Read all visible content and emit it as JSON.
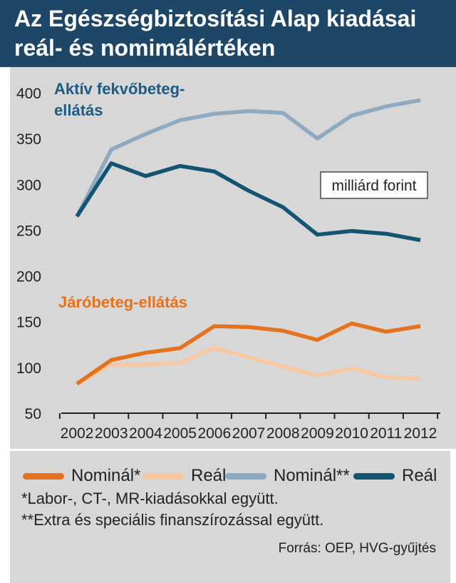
{
  "header": {
    "title_line1": "Az Egészségbiztosítási Alap kiadásai",
    "title_line2": "reál- és nomimálértéken"
  },
  "colors": {
    "header_bg": "#1e4666",
    "nominal_orange": "#e5721c",
    "real_orange": "#f8c9a1",
    "nominal_blue": "#8eaac0",
    "real_blue": "#135472",
    "background": "#d7d7d7"
  },
  "chart_data": {
    "type": "line",
    "categories": [
      "2002",
      "2003",
      "2004",
      "2005",
      "2006",
      "2007",
      "2008",
      "2009",
      "2010",
      "2011",
      "2012"
    ],
    "ylim": [
      50,
      400
    ],
    "yticks": [
      50,
      100,
      150,
      200,
      250,
      300,
      350,
      400
    ],
    "unit_label": "milliárd forint",
    "grid": false,
    "groups": [
      {
        "label": "Aktív fekvőbeteg-\nellátás",
        "label_line1": "Aktív fekvőbeteg-",
        "label_line2": "ellátás",
        "color": "#1d5c80"
      },
      {
        "label": "Járóbeteg-ellátás",
        "color": "#e5721c"
      }
    ],
    "series": [
      {
        "name": "Nominál**",
        "group": "Aktív fekvőbeteg-ellátás",
        "color": "#8eaac0",
        "values": [
          265,
          338,
          355,
          370,
          377,
          380,
          378,
          350,
          375,
          385,
          392
        ]
      },
      {
        "name": "Reál",
        "group": "Aktív fekvőbeteg-ellátás",
        "color": "#135472",
        "values": [
          265,
          323,
          309,
          320,
          314,
          293,
          275,
          245,
          249,
          246,
          239
        ]
      },
      {
        "name": "Reál",
        "group": "Járóbeteg-ellátás",
        "color": "#f8c9a1",
        "values": [
          82,
          103,
          103,
          105,
          121,
          111,
          101,
          91,
          99,
          89,
          88
        ]
      },
      {
        "name": "Nominál*",
        "group": "Járóbeteg-ellátás",
        "color": "#e5721c",
        "values": [
          82,
          108,
          116,
          121,
          145,
          144,
          140,
          130,
          148,
          139,
          145
        ]
      }
    ]
  },
  "legend": [
    {
      "label": "Nominál*",
      "color": "#e5721c"
    },
    {
      "label": "Reál",
      "color": "#f8c9a1"
    },
    {
      "label": "Nominál**",
      "color": "#8eaac0"
    },
    {
      "label": "Reál",
      "color": "#135472"
    }
  ],
  "notes": {
    "note1": "*Labor-, CT-, MR-kiadásokkal együtt.",
    "note2": "**Extra és speciális finanszírozással együtt.",
    "source": "Forrás: OEP, HVG-gyűjtés"
  }
}
